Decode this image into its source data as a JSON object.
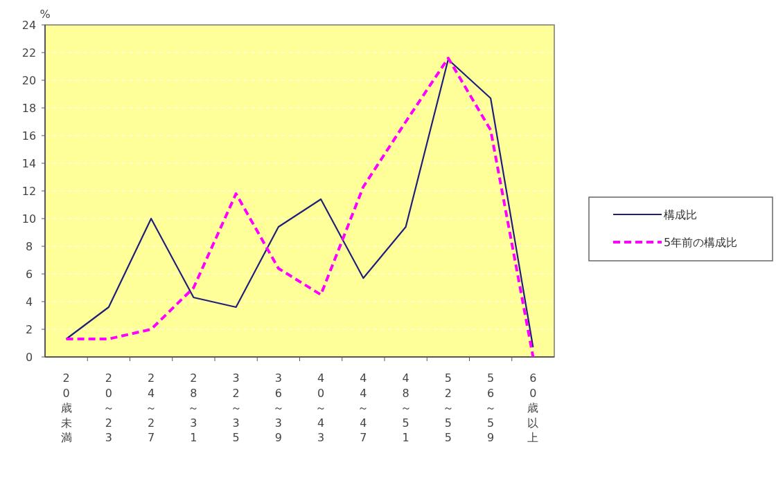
{
  "chart_data": {
    "type": "line",
    "ylabel": "%",
    "categories": [
      "20歳未満",
      "20～23",
      "24～27",
      "28～31",
      "32～35",
      "36～39",
      "40～43",
      "44～47",
      "48～51",
      "52～55",
      "56～59",
      "60歳以上"
    ],
    "series": [
      {
        "name": "構成比",
        "color": "#1f1f7a",
        "line_style": "solid",
        "values": [
          1.3,
          3.6,
          10.0,
          4.3,
          3.6,
          9.4,
          11.4,
          5.7,
          9.4,
          21.5,
          18.7,
          0.7
        ]
      },
      {
        "name": "5年前の構成比",
        "color": "#ff00ff",
        "line_style": "dashed",
        "values": [
          1.3,
          1.3,
          2.0,
          5.0,
          11.8,
          6.4,
          4.5,
          12.3,
          17.0,
          21.6,
          16.4,
          0
        ]
      }
    ],
    "ylim": [
      0,
      24
    ],
    "yticks": [
      0,
      2,
      4,
      6,
      8,
      10,
      12,
      14,
      16,
      18,
      20,
      22,
      24
    ],
    "grid": "y",
    "legend": "right",
    "marker": "none"
  }
}
